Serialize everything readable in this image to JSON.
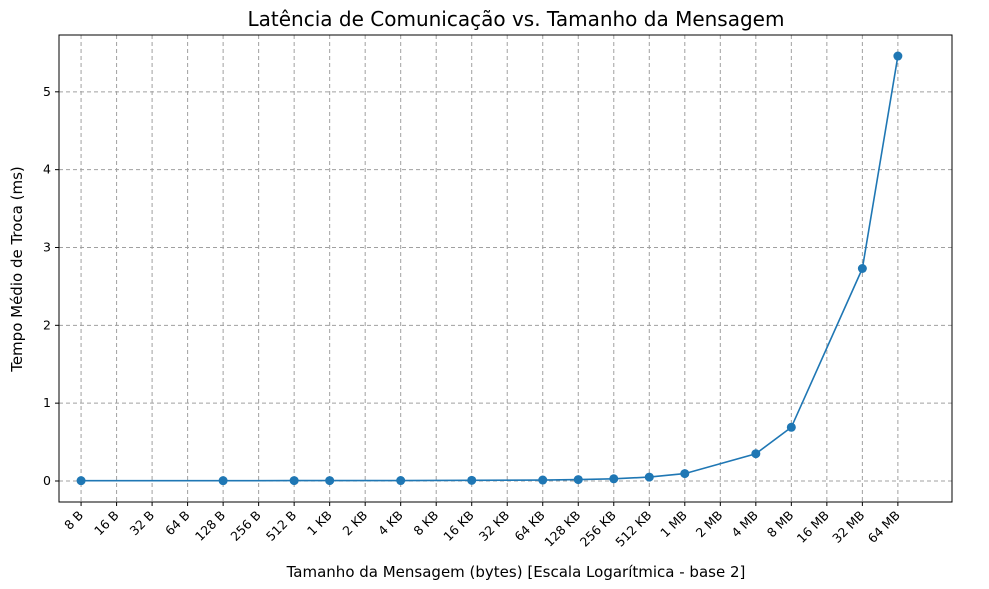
{
  "chart_data": {
    "type": "line",
    "title": "Latência de Comunicação vs. Tamanho da Mensagem",
    "xlabel": "Tamanho da Mensagem (bytes) [Escala Logarítmica - base 2]",
    "ylabel": "Tempo Médio de Troca (ms)",
    "x_scale": "log2",
    "xlim": [
      5.2,
      193000000
    ],
    "ylim": [
      -0.27,
      5.73
    ],
    "grid": true,
    "color": "#1f77b4",
    "x_ticks": [
      {
        "value": 8,
        "label": "8 B"
      },
      {
        "value": 16,
        "label": "16 B"
      },
      {
        "value": 32,
        "label": "32 B"
      },
      {
        "value": 64,
        "label": "64 B"
      },
      {
        "value": 128,
        "label": "128 B"
      },
      {
        "value": 256,
        "label": "256 B"
      },
      {
        "value": 512,
        "label": "512 B"
      },
      {
        "value": 1024,
        "label": "1 KB"
      },
      {
        "value": 2048,
        "label": "2 KB"
      },
      {
        "value": 4096,
        "label": "4 KB"
      },
      {
        "value": 8192,
        "label": "8 KB"
      },
      {
        "value": 16384,
        "label": "16 KB"
      },
      {
        "value": 32768,
        "label": "32 KB"
      },
      {
        "value": 65536,
        "label": "64 KB"
      },
      {
        "value": 131072,
        "label": "128 KB"
      },
      {
        "value": 262144,
        "label": "256 KB"
      },
      {
        "value": 524288,
        "label": "512 KB"
      },
      {
        "value": 1048576,
        "label": "1 MB"
      },
      {
        "value": 2097152,
        "label": "2 MB"
      },
      {
        "value": 4194304,
        "label": "4 MB"
      },
      {
        "value": 8388608,
        "label": "8 MB"
      },
      {
        "value": 16777216,
        "label": "16 MB"
      },
      {
        "value": 33554432,
        "label": "32 MB"
      },
      {
        "value": 67108864,
        "label": "64 MB"
      }
    ],
    "y_ticks": [
      0,
      1,
      2,
      3,
      4,
      5
    ],
    "points": [
      {
        "x": 8,
        "y": 0.004
      },
      {
        "x": 128,
        "y": 0.004
      },
      {
        "x": 512,
        "y": 0.005
      },
      {
        "x": 1024,
        "y": 0.005
      },
      {
        "x": 4096,
        "y": 0.006
      },
      {
        "x": 16384,
        "y": 0.008
      },
      {
        "x": 65536,
        "y": 0.012
      },
      {
        "x": 131072,
        "y": 0.018
      },
      {
        "x": 262144,
        "y": 0.028
      },
      {
        "x": 524288,
        "y": 0.05
      },
      {
        "x": 1048576,
        "y": 0.095
      },
      {
        "x": 4194304,
        "y": 0.35
      },
      {
        "x": 8388608,
        "y": 0.69
      },
      {
        "x": 33554432,
        "y": 2.73
      },
      {
        "x": 67108864,
        "y": 5.46
      }
    ]
  }
}
